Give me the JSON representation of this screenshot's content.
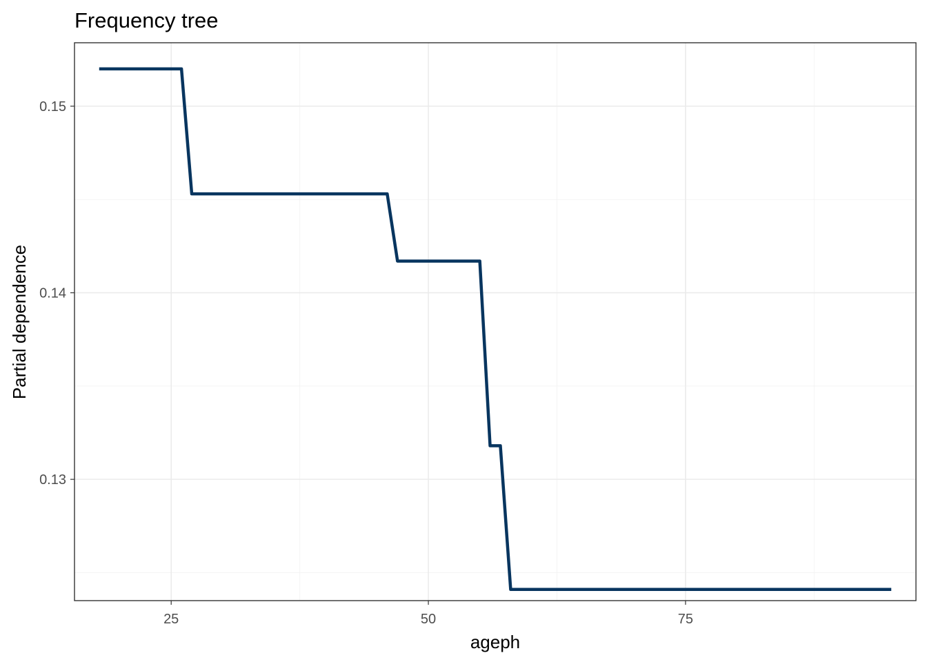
{
  "chart_data": {
    "type": "line",
    "title": "Frequency tree",
    "xlabel": "ageph",
    "ylabel": "Partial dependence",
    "xlim": [
      15.6,
      97.4
    ],
    "ylim": [
      0.1235,
      0.1534
    ],
    "x_ticks": [
      25,
      50,
      75
    ],
    "x_tick_labels": [
      "25",
      "50",
      "75"
    ],
    "x_minor_ticks": [
      37.5,
      62.5,
      87.5
    ],
    "y_ticks": [
      0.13,
      0.14,
      0.15
    ],
    "y_tick_labels": [
      "0.13",
      "0.14",
      "0.15"
    ],
    "y_minor_ticks": [
      0.125,
      0.135,
      0.145
    ],
    "grid": true,
    "series": [
      {
        "color": "#08355f",
        "x": [
          18,
          26,
          27,
          46,
          47,
          55,
          56,
          57,
          58,
          95
        ],
        "y": [
          0.152,
          0.152,
          0.1453,
          0.1453,
          0.1417,
          0.1417,
          0.1318,
          0.1318,
          0.1241,
          0.1241
        ]
      }
    ]
  }
}
